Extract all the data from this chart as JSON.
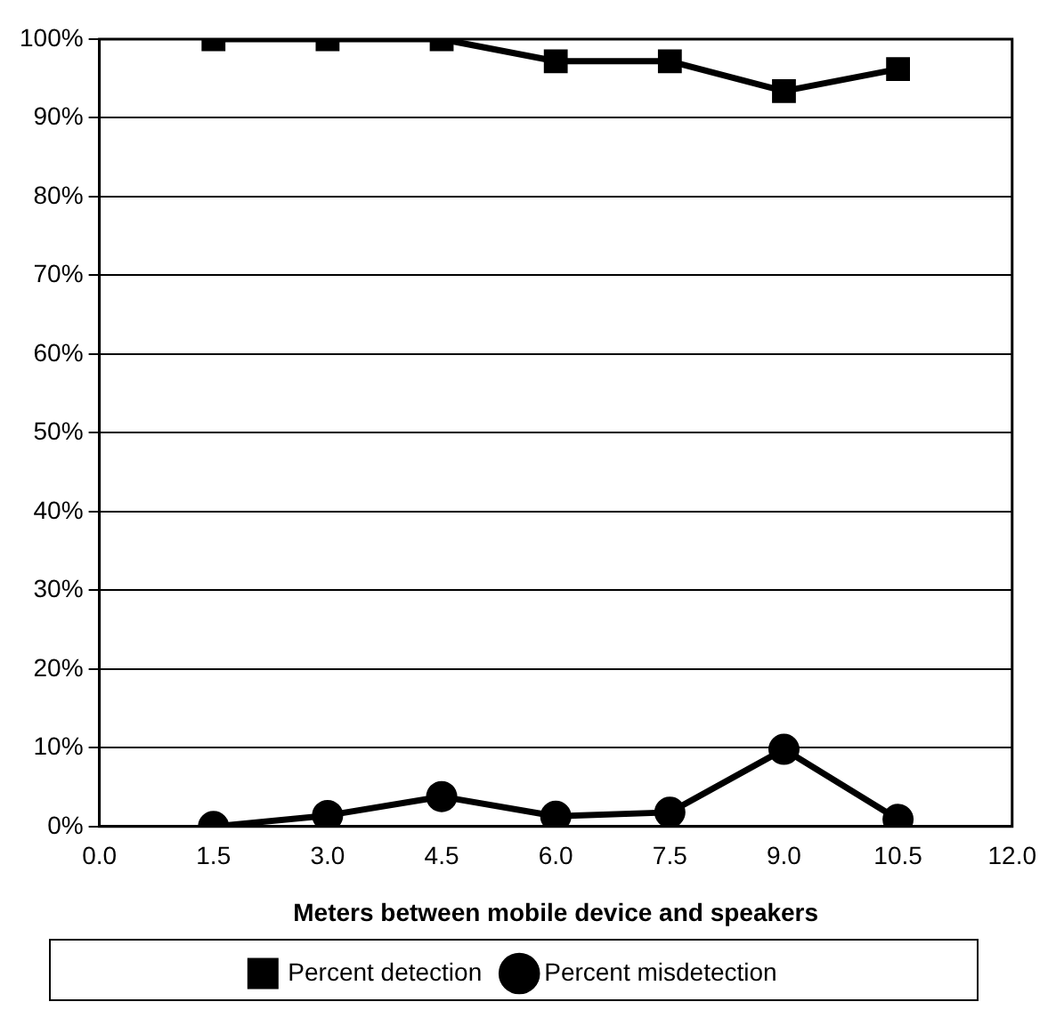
{
  "chart_data": {
    "type": "line",
    "xlabel": "Meters between mobile device and speakers",
    "x": [
      1.5,
      3.0,
      4.5,
      6.0,
      7.5,
      9.0,
      10.5
    ],
    "series": [
      {
        "name": "Percent detection",
        "color": "#000000",
        "marker": "square",
        "values": [
          100,
          100,
          100,
          97.2,
          97.2,
          93.4,
          96.2
        ]
      },
      {
        "name": "Percent misdetection",
        "color": "#000000",
        "marker": "circle",
        "values": [
          0,
          1.4,
          3.8,
          1.3,
          1.8,
          9.8,
          0.9
        ]
      }
    ],
    "xlim": [
      0,
      12
    ],
    "xticks": [
      {
        "value": 0,
        "label": "0.0"
      },
      1.5,
      {
        "value": 3,
        "label": "3.0"
      },
      4.5,
      {
        "value": 6,
        "label": "6.0"
      },
      7.5,
      {
        "value": 9,
        "label": "9.0"
      },
      10.5,
      {
        "value": 12,
        "label": "12.0"
      }
    ],
    "ylim": [
      0,
      100
    ],
    "yticks": [
      {
        "value": 0,
        "label": "0%"
      },
      {
        "value": 10,
        "label": "10%"
      },
      {
        "value": 20,
        "label": "20%"
      },
      {
        "value": 30,
        "label": "30%"
      },
      {
        "value": 40,
        "label": "40%"
      },
      {
        "value": 50,
        "label": "50%"
      },
      {
        "value": 60,
        "label": "60%"
      },
      {
        "value": 70,
        "label": "70%"
      },
      {
        "value": 80,
        "label": "80%"
      },
      {
        "value": 90,
        "label": "90%"
      },
      {
        "value": 100,
        "label": "100%"
      }
    ],
    "grid": "y",
    "legend": "bottom",
    "line_style": "solid"
  }
}
